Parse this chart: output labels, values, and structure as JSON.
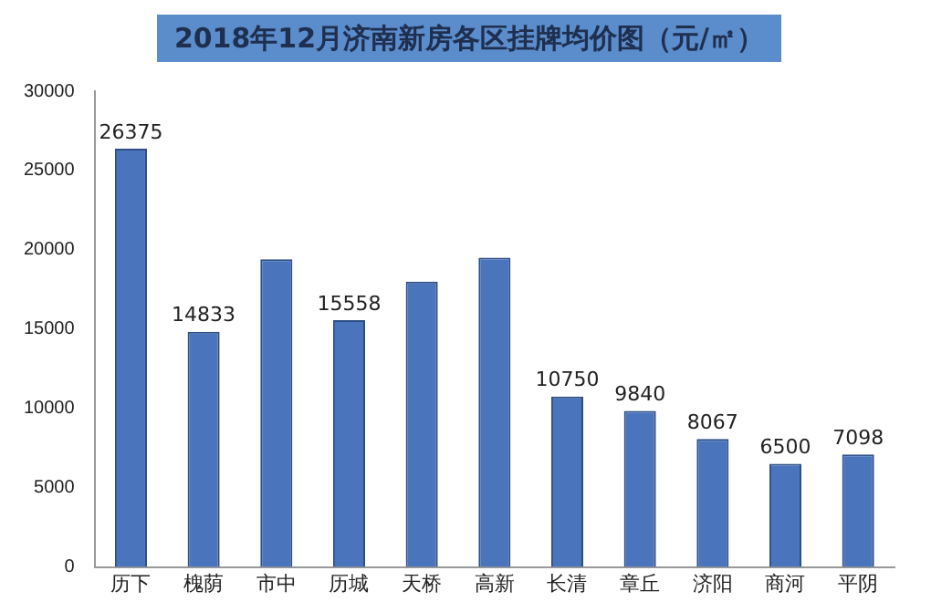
{
  "chart_data": {
    "type": "bar",
    "title": "2018年12月济南新房各区挂牌均价图（元/㎡）",
    "categories": [
      "历下",
      "槐荫",
      "市中",
      "历城",
      "天桥",
      "高新",
      "长清",
      "章丘",
      "济阳",
      "商河",
      "平阴"
    ],
    "values": [
      26375,
      14833,
      19400,
      15558,
      18000,
      19500,
      10750,
      9840,
      8067,
      6500,
      7098
    ],
    "value_labels": [
      "26375",
      "14833",
      null,
      "15558",
      null,
      null,
      "10750",
      "9840",
      "8067",
      "6500",
      "7098"
    ],
    "color": "#4a74bc",
    "ylim": [
      0,
      30000
    ],
    "yticks": [
      0,
      5000,
      10000,
      15000,
      20000,
      25000,
      30000
    ],
    "grid": false,
    "legend": false
  }
}
